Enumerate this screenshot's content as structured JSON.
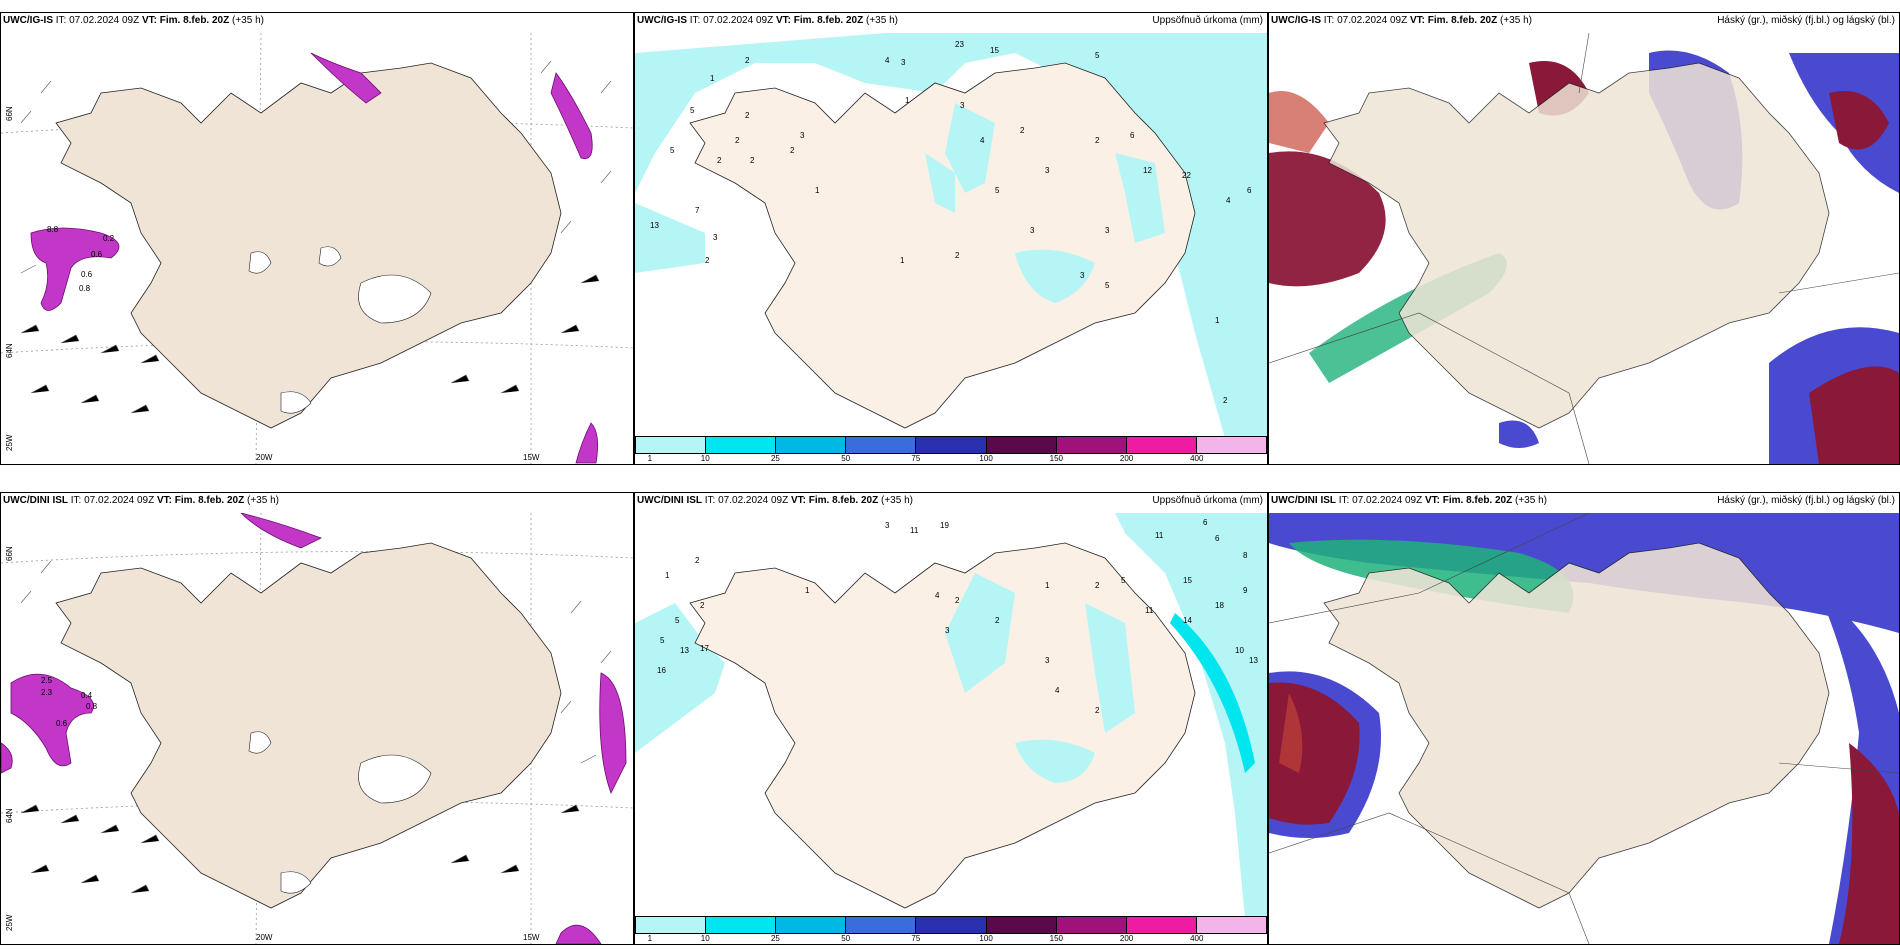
{
  "panels": [
    {
      "model": "UWC/IG-IS",
      "it": "IT: 07.02.2024 09Z",
      "vt": "VT: Fim. 8.feb. 20Z",
      "lead": "(+35 h)",
      "right": ""
    },
    {
      "model": "UWC/IG-IS",
      "it": "IT: 07.02.2024 09Z",
      "vt": "VT: Fim. 8.feb. 20Z",
      "lead": "(+35 h)",
      "right": "Uppsöfnuð úrkoma (mm)"
    },
    {
      "model": "UWC/IG-IS",
      "it": "IT: 07.02.2024 09Z",
      "vt": "VT: Fim. 8.feb. 20Z",
      "lead": "(+35 h)",
      "right": "Háský (gr.), miðský (fj.bl.) og lágský (bl.)"
    },
    {
      "model": "UWC/DINI ISL",
      "it": "IT: 07.02.2024 09Z",
      "vt": "VT: Fim. 8.feb. 20Z",
      "lead": "(+35 h)",
      "right": ""
    },
    {
      "model": "UWC/DINI ISL",
      "it": "IT: 07.02.2024 09Z",
      "vt": "VT: Fim. 8.feb. 20Z",
      "lead": "(+35 h)",
      "right": "Uppsöfnuð úrkoma (mm)"
    },
    {
      "model": "UWC/DINI ISL",
      "it": "IT: 07.02.2024 09Z",
      "vt": "VT: Fim. 8.feb. 20Z",
      "lead": "(+35 h)",
      "right": "Háský (gr.), miðský (fj.bl.) og lágský (bl.)"
    }
  ],
  "axes": {
    "lon1": "20W",
    "lon2": "15W",
    "lat66": "66N",
    "lat64": "64N",
    "lat_low": "25W"
  },
  "colorbar": {
    "ticks": [
      "1",
      "10",
      "25",
      "50",
      "75",
      "100",
      "150",
      "200",
      "400"
    ],
    "colors": [
      "#b5f5f5",
      "#00e5ee",
      "#00b8e6",
      "#3b6cdd",
      "#2a2fb0",
      "#5a0a4a",
      "#a0127a",
      "#ee1ca2",
      "#f2b5ea"
    ]
  },
  "precip_labels_top": [
    "2",
    "4",
    "3",
    "23",
    "15",
    "1",
    "5",
    "2",
    "5",
    "2",
    "2",
    "2",
    "3",
    "2",
    "7",
    "13",
    "3",
    "2",
    "1",
    "1",
    "3",
    "4",
    "5",
    "2",
    "3",
    "2",
    "5",
    "6",
    "12",
    "22",
    "4",
    "6",
    "1",
    "2",
    "3",
    "5",
    "2",
    "3",
    "1",
    "3"
  ],
  "precip_labels_bottom": [
    "3",
    "11",
    "19",
    "2",
    "1",
    "2",
    "5",
    "5",
    "13",
    "17",
    "16",
    "1",
    "4",
    "2",
    "3",
    "2",
    "1",
    "2",
    "5",
    "11",
    "14",
    "15",
    "18",
    "6",
    "6",
    "11",
    "8",
    "9",
    "10",
    "13",
    "3",
    "4",
    "2"
  ],
  "wind_labels_top": [
    "8.8",
    "0.2",
    "0.6",
    "0.6",
    "0.8"
  ],
  "wind_labels_bottom": [
    "2.5",
    "2.3",
    "0.6",
    "0.4",
    "0.8"
  ],
  "colors": {
    "land": "#efe4d6",
    "sea_precip": "#a8f2f2",
    "precip_light": "#b5f5f5",
    "purple": "#c236c8",
    "high": "#8a1838",
    "mid": "#4a4ad0",
    "low_green": "#1fb27a"
  }
}
